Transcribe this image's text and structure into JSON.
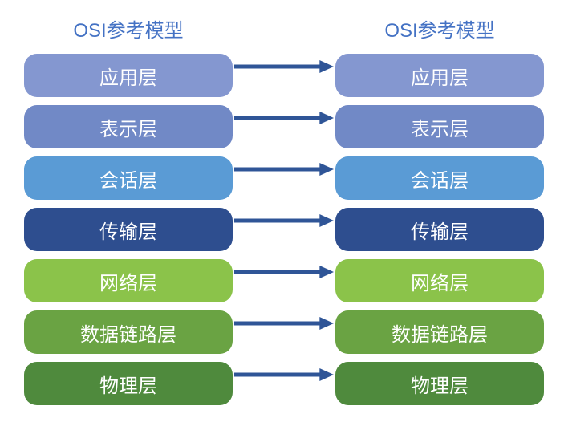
{
  "diagram": {
    "type": "flowchart",
    "background_color": "#ffffff",
    "title_color": "#4472c4",
    "title_fontsize": 24,
    "layer_fontsize": 24,
    "layer_text_color": "#ffffff",
    "layer_height": 54,
    "layer_border_radius": 16,
    "arrow_color": "#2f5597",
    "arrow_stroke_width": 5,
    "left": {
      "title": "OSI参考模型",
      "layers": [
        {
          "label": "应用层",
          "color": "#8497d0"
        },
        {
          "label": "表示层",
          "color": "#7189c6"
        },
        {
          "label": "会话层",
          "color": "#5a9bd5"
        },
        {
          "label": "传输层",
          "color": "#2e4e8f"
        },
        {
          "label": "网络层",
          "color": "#8bc34a"
        },
        {
          "label": "数据链路层",
          "color": "#6aa343"
        },
        {
          "label": "物理层",
          "color": "#4f8a3d"
        }
      ]
    },
    "right": {
      "title": "OSI参考模型",
      "layers": [
        {
          "label": "应用层",
          "color": "#8497d0"
        },
        {
          "label": "表示层",
          "color": "#7189c6"
        },
        {
          "label": "会话层",
          "color": "#5a9bd5"
        },
        {
          "label": "传输层",
          "color": "#2e4e8f"
        },
        {
          "label": "网络层",
          "color": "#8bc34a"
        },
        {
          "label": "数据链路层",
          "color": "#6aa343"
        },
        {
          "label": "物理层",
          "color": "#4f8a3d"
        }
      ]
    }
  }
}
